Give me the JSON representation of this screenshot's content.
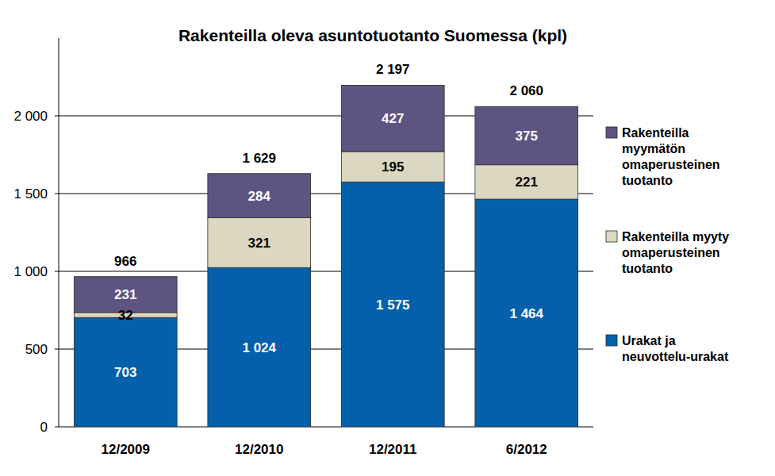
{
  "chart_data": {
    "type": "bar",
    "title": "Rakenteilla oleva asuntotuotanto Suomessa (kpl)",
    "categories": [
      "12/2009",
      "12/2010",
      "12/2011",
      "6/2012"
    ],
    "stacked": true,
    "data_labels": true,
    "grid": true,
    "legend": "right",
    "ylim": [
      0,
      2500
    ],
    "yticks": [
      0,
      500,
      {
        "value": 1000,
        "label": "1 000"
      },
      {
        "value": 1500,
        "label": "1 500"
      },
      {
        "value": 2000,
        "label": "2 000"
      }
    ],
    "series": [
      {
        "name": "Urakat ja neuvottelu-urakat",
        "color": "#0460ab",
        "values": [
          703,
          1024,
          1575,
          1464
        ],
        "value_labels": [
          "703",
          "1 024",
          "1 575",
          "1 464"
        ]
      },
      {
        "name": "Rakenteilla myyty omaperusteinen tuotanto",
        "color": "#dcd7c0",
        "values": [
          32,
          321,
          195,
          221
        ]
      },
      {
        "name": "Rakenteilla myymätön omaperusteinen tuotanto",
        "color": "#5e5482",
        "values": [
          231,
          284,
          427,
          375
        ]
      }
    ],
    "totals": [
      966,
      1629,
      2197,
      2060
    ],
    "total_labels": [
      "966",
      "1 629",
      "2 197",
      "2 060"
    ]
  }
}
